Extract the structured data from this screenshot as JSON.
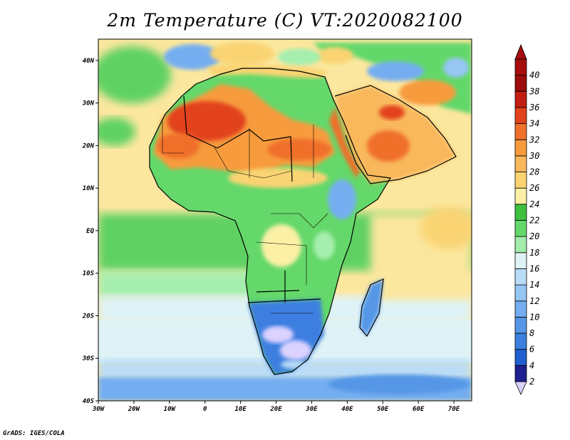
{
  "title": "2m Temperature (C) VT:2020082100",
  "credit": "GrADS: IGES/COLA",
  "map": {
    "lon_labels": [
      "30W",
      "20W",
      "10W",
      "0",
      "10E",
      "20E",
      "30E",
      "40E",
      "50E",
      "60E",
      "70E"
    ],
    "lat_labels": [
      "40N",
      "30N",
      "20N",
      "10N",
      "EQ",
      "10S",
      "20S",
      "30S",
      "40S"
    ],
    "lon_range": [
      -30,
      75
    ],
    "lat_range": [
      -40,
      45
    ]
  },
  "colorbar": {
    "levels": [
      "2",
      "4",
      "6",
      "8",
      "10",
      "12",
      "14",
      "16",
      "18",
      "20",
      "22",
      "24",
      "26",
      "28",
      "30",
      "32",
      "34",
      "36",
      "38",
      "40"
    ],
    "colors": [
      "#dcd2ff",
      "#1f1f8f",
      "#1f5fce",
      "#3d7fe0",
      "#5597e6",
      "#74aef0",
      "#97c6f5",
      "#b9dcf7",
      "#dff3f6",
      "#a3ecaa",
      "#64d86a",
      "#3ec13e",
      "#fbf0a5",
      "#fad473",
      "#f9b85b",
      "#f79b3d",
      "#f0702c",
      "#e2431c",
      "#c21e13",
      "#9c0c0c",
      "#a50d0d"
    ]
  }
}
